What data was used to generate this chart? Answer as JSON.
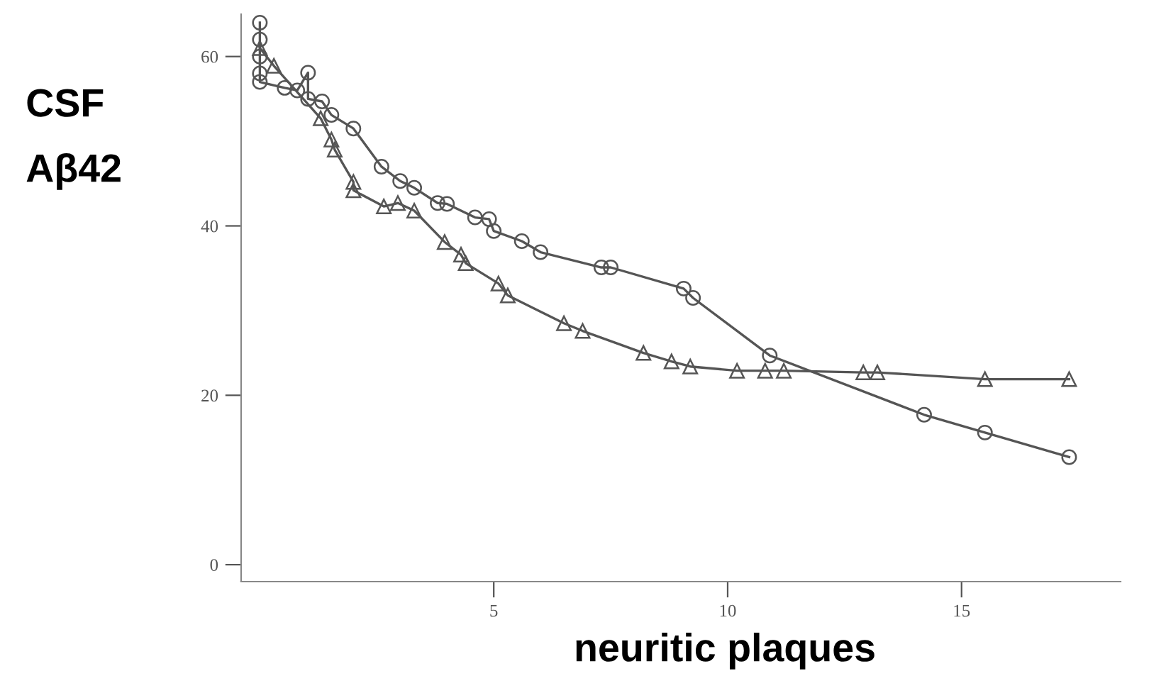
{
  "chart_data": {
    "type": "line",
    "xlabel": "neuritic plaques",
    "ylabel": "CSF\nAβ42",
    "xlim": [
      -0.4,
      18.4
    ],
    "ylim": [
      -2,
      65
    ],
    "xticks": [
      5,
      10,
      15
    ],
    "yticks": [
      0,
      20,
      40,
      60
    ],
    "grid": false,
    "legend": false,
    "line_style": "solid",
    "series": [
      {
        "color": "#555555",
        "marker": "circle",
        "x": [
          0,
          0,
          0,
          0,
          0,
          0.53,
          0.8,
          1.03,
          1.03,
          1.33,
          1.53,
          2.0,
          2.6,
          3.0,
          3.3,
          3.8,
          4.0,
          4.6,
          4.9,
          5.0,
          5.6,
          6.0,
          7.3,
          7.5,
          9.06,
          9.26,
          10.9,
          14.2,
          15.5,
          17.3
        ],
        "values": [
          64,
          62,
          60,
          58,
          57,
          56.3,
          56,
          58.1,
          55,
          54.7,
          53.1,
          51.5,
          47,
          45.3,
          44.5,
          42.7,
          42.6,
          41,
          40.8,
          39.4,
          38.2,
          36.9,
          35.1,
          35.1,
          32.6,
          31.5,
          24.7,
          17.7,
          15.6,
          12.7
        ]
      },
      {
        "color": "#555555",
        "marker": "triangle",
        "x": [
          0,
          0.3,
          1.3,
          1.53,
          1.6,
          2.0,
          2.0,
          2.65,
          2.95,
          3.3,
          3.95,
          4.3,
          4.4,
          5.1,
          5.3,
          6.5,
          6.9,
          8.2,
          8.8,
          9.2,
          10.2,
          10.8,
          11.2,
          12.9,
          13.2,
          15.5,
          17.3
        ],
        "values": [
          61,
          58.9,
          52.7,
          50.2,
          49,
          45.2,
          44.2,
          42.3,
          42.7,
          41.8,
          38.1,
          36.6,
          35.6,
          33.2,
          31.8,
          28.5,
          27.6,
          25,
          24,
          23.4,
          22.9,
          22.9,
          22.9,
          22.7,
          22.7,
          21.9,
          21.9
        ]
      }
    ]
  }
}
